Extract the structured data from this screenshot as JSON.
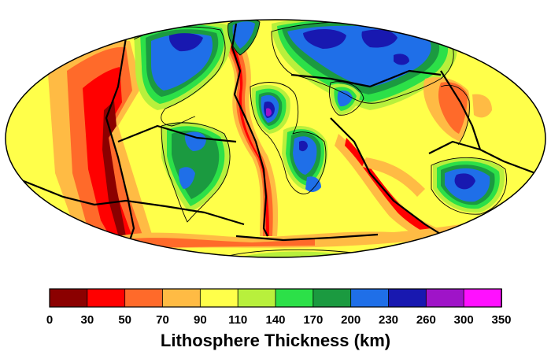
{
  "legend": {
    "title": "Lithosphere Thickness (km)",
    "bins": [
      {
        "min": 0,
        "max": 30,
        "color": "#8b0000"
      },
      {
        "min": 30,
        "max": 50,
        "color": "#ff0000"
      },
      {
        "min": 50,
        "max": 70,
        "color": "#ff6a2a"
      },
      {
        "min": 70,
        "max": 90,
        "color": "#ffbb44"
      },
      {
        "min": 90,
        "max": 110,
        "color": "#ffff4a"
      },
      {
        "min": 110,
        "max": 140,
        "color": "#b8f03c"
      },
      {
        "min": 140,
        "max": 170,
        "color": "#2ce048"
      },
      {
        "min": 170,
        "max": 200,
        "color": "#1b9a40"
      },
      {
        "min": 200,
        "max": 230,
        "color": "#1f6fe8"
      },
      {
        "min": 230,
        "max": 260,
        "color": "#1818b0"
      },
      {
        "min": 260,
        "max": 300,
        "color": "#9f14c8"
      },
      {
        "min": 300,
        "max": 350,
        "color": "#ff10ff"
      }
    ],
    "tick_labels": [
      "0",
      "30",
      "50",
      "70",
      "90",
      "110",
      "140",
      "170",
      "200",
      "230",
      "260",
      "300",
      "350"
    ]
  },
  "map": {
    "projection": "Mollweide",
    "background_color": "#ffff4a"
  }
}
